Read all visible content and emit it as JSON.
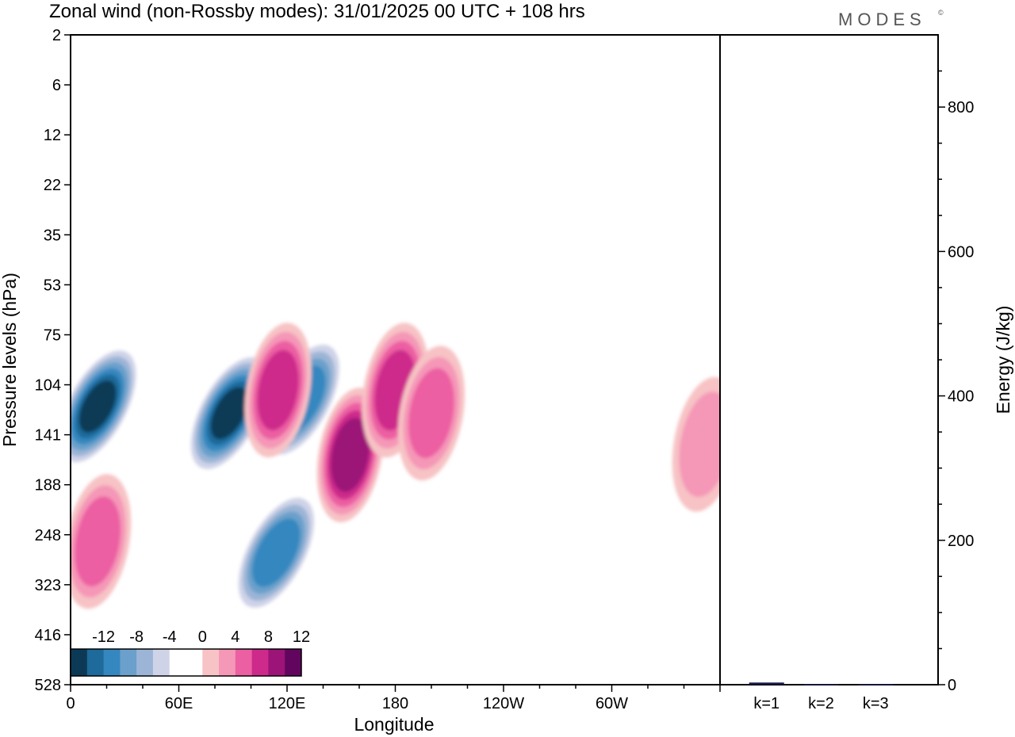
{
  "header": {
    "title": "Zonal wind (non-Rossby modes):  31/01/2025  00 UTC  + 108 hrs",
    "logo": "MODES",
    "logo_mark": "©"
  },
  "chart_data": [
    {
      "type": "heatmap",
      "title": "Zonal wind (non-Rossby modes):  31/01/2025  00 UTC  + 108 hrs",
      "xlabel": "Longitude",
      "ylabel": "Pressure levels (hPa)",
      "x_ticks": [
        "0",
        "60E",
        "120E",
        "180",
        "120W",
        "60W"
      ],
      "x_tick_degrees": [
        0,
        60,
        120,
        180,
        240,
        300
      ],
      "xlim": [
        0,
        360
      ],
      "y_ticks": [
        "2",
        "6",
        "12",
        "22",
        "35",
        "53",
        "75",
        "104",
        "141",
        "188",
        "248",
        "323",
        "416",
        "528"
      ],
      "colorbar": {
        "tick_labels": [
          "-12",
          "-8",
          "-4",
          "0",
          "4",
          "8",
          "12"
        ],
        "levels": [
          -14,
          -12,
          -10,
          -8,
          -6,
          -4,
          -2,
          2,
          4,
          6,
          8,
          10,
          12,
          14
        ],
        "colors": [
          "#0c3a56",
          "#1d6a9b",
          "#3587bf",
          "#6aa0cb",
          "#9cb5d6",
          "#cfd3e8",
          "#ffffff",
          "#ffffff",
          "#f7c3c5",
          "#f597b7",
          "#ec5fa2",
          "#cd2a8b",
          "#9c1478",
          "#62055f"
        ]
      },
      "features": [
        {
          "lon": 15,
          "level": 120,
          "value": -14
        },
        {
          "lon": 88,
          "level": 125,
          "value": -14
        },
        {
          "lon": 128,
          "level": 115,
          "value": -11
        },
        {
          "lon": 114,
          "level": 275,
          "value": -11
        },
        {
          "lon": 115,
          "level": 108,
          "value": 9
        },
        {
          "lon": 155,
          "level": 160,
          "value": 11
        },
        {
          "lon": 180,
          "level": 108,
          "value": 9
        },
        {
          "lon": 200,
          "level": 125,
          "value": 8
        },
        {
          "lon": 15,
          "level": 258,
          "value": 8
        },
        {
          "lon": 352,
          "level": 150,
          "value": 6
        }
      ]
    },
    {
      "type": "bar",
      "categories": [
        "k=1",
        "k=2",
        "k=3"
      ],
      "values": [
        3,
        1,
        1
      ],
      "ylabel": "Energy (J/kg)",
      "y_ticks": [
        "0",
        "200",
        "400",
        "600",
        "800"
      ],
      "ylim": [
        0,
        900
      ],
      "bar_color": "#1a1a4a"
    }
  ]
}
